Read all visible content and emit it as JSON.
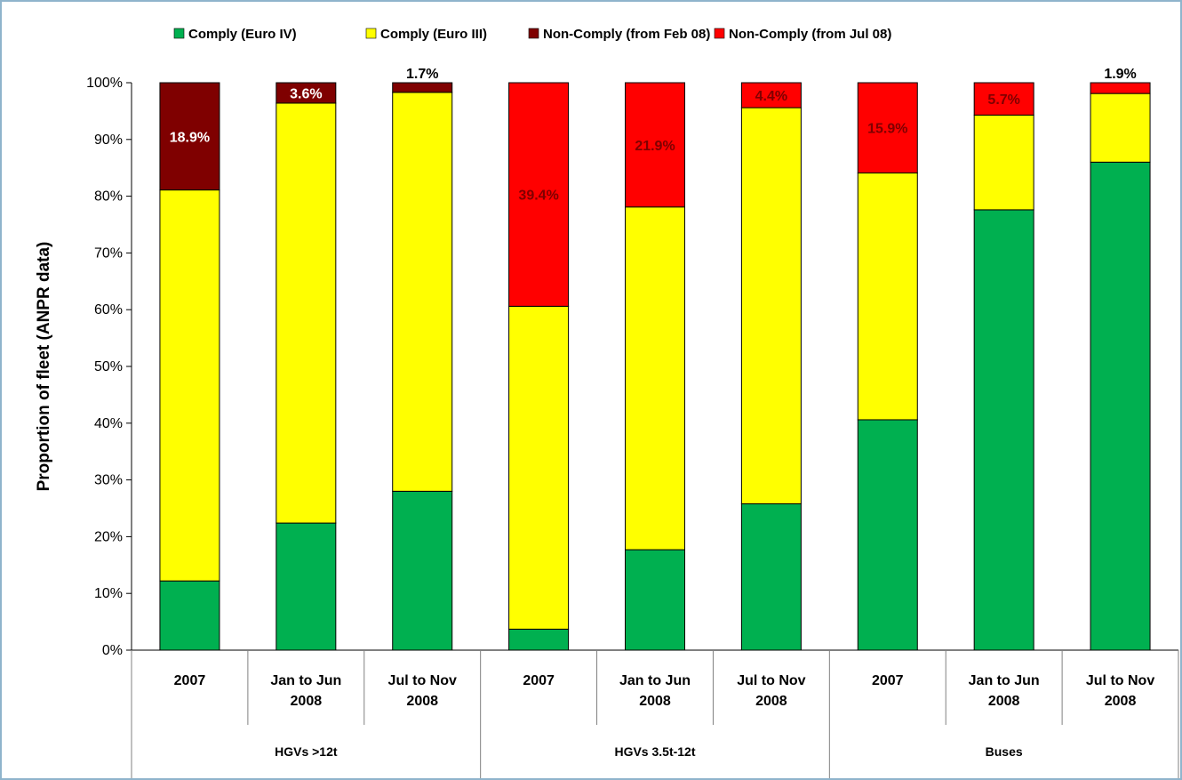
{
  "colors": {
    "comply_euro_iv": "#00b050",
    "comply_euro_iii": "#ffff00",
    "non_comply_feb": "#7f0000",
    "non_comply_jul": "#ff0000",
    "frame_border": "#8fb4cc"
  },
  "chart_data": {
    "type": "bar",
    "stacked": true,
    "ylabel": "Proportion of fleet (ANPR data)",
    "ylim": [
      0,
      100
    ],
    "y_ticks": [
      "0%",
      "10%",
      "20%",
      "30%",
      "40%",
      "50%",
      "60%",
      "70%",
      "80%",
      "90%",
      "100%"
    ],
    "grid": false,
    "legend_position": "top",
    "groups": [
      {
        "name": "HGVs >12t",
        "categories": 3
      },
      {
        "name": "HGVs 3.5t-12t",
        "categories": 3
      },
      {
        "name": "Buses",
        "categories": 3
      }
    ],
    "categories": [
      [
        "2007"
      ],
      [
        "Jan to Jun",
        "2008"
      ],
      [
        "Jul to Nov",
        "2008"
      ],
      [
        "2007"
      ],
      [
        "Jan to Jun",
        "2008"
      ],
      [
        "Jul to Nov",
        "2008"
      ],
      [
        "2007"
      ],
      [
        "Jan to Jun",
        "2008"
      ],
      [
        "Jul to Nov",
        "2008"
      ]
    ],
    "series": [
      {
        "name": "Comply (Euro IV)",
        "color": "#00b050",
        "values": [
          12.2,
          22.4,
          28.0,
          3.7,
          17.7,
          25.8,
          40.6,
          77.6,
          86.0
        ]
      },
      {
        "name": "Comply (Euro III)",
        "color": "#ffff00",
        "values": [
          68.9,
          74.0,
          70.3,
          56.9,
          60.4,
          69.8,
          43.5,
          16.7,
          12.1
        ]
      },
      {
        "name": "Non-Comply (from Feb 08)",
        "color": "#7f0000",
        "values": [
          18.9,
          3.6,
          1.7,
          0,
          0,
          0,
          0,
          0,
          0
        ]
      },
      {
        "name": "Non-Comply (from Jul 08)",
        "color": "#ff0000",
        "values": [
          0,
          0,
          0,
          39.4,
          21.9,
          4.4,
          15.9,
          5.7,
          1.9
        ]
      }
    ],
    "data_labels": [
      {
        "bar": 0,
        "text": "18.9%",
        "color": "#ffffff",
        "position": "inside"
      },
      {
        "bar": 1,
        "text": "3.6%",
        "color": "#ffffff",
        "position": "inside"
      },
      {
        "bar": 2,
        "text": "1.7%",
        "color": "#000000",
        "position": "above"
      },
      {
        "bar": 3,
        "text": "39.4%",
        "color": "#7f0000",
        "position": "inside"
      },
      {
        "bar": 4,
        "text": "21.9%",
        "color": "#7f0000",
        "position": "inside"
      },
      {
        "bar": 5,
        "text": "4.4%",
        "color": "#7f0000",
        "position": "inside"
      },
      {
        "bar": 6,
        "text": "15.9%",
        "color": "#7f0000",
        "position": "inside"
      },
      {
        "bar": 7,
        "text": "5.7%",
        "color": "#7f0000",
        "position": "inside"
      },
      {
        "bar": 8,
        "text": "1.9%",
        "color": "#000000",
        "position": "above"
      }
    ]
  }
}
